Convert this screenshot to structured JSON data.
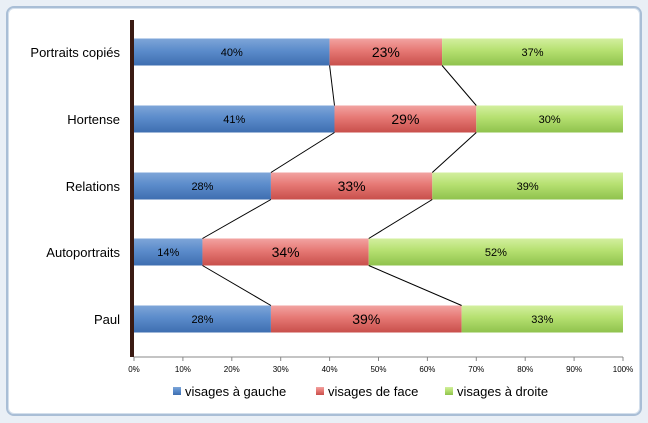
{
  "chart_data": {
    "type": "bar",
    "orientation": "horizontal",
    "stacked": true,
    "percent": true,
    "categories": [
      "Portraits copiés",
      "Hortense",
      "Relations",
      "Autoportraits",
      "Paul"
    ],
    "series": [
      {
        "name": "visages à gauche",
        "color": "#4f81bd",
        "values": [
          40,
          41,
          28,
          14,
          28
        ]
      },
      {
        "name": "visages de face",
        "color": "#d9534f",
        "values": [
          23,
          29,
          33,
          34,
          39
        ]
      },
      {
        "name": "visages à droite",
        "color": "#9bcc5a",
        "values": [
          37,
          30,
          39,
          52,
          33
        ]
      }
    ],
    "xlim": [
      0,
      100
    ],
    "xticks": [
      "0%",
      "10%",
      "20%",
      "30%",
      "40%",
      "50%",
      "60%",
      "70%",
      "80%",
      "90%",
      "100%"
    ],
    "series_lines": true,
    "legend_position": "bottom",
    "grid": false
  }
}
